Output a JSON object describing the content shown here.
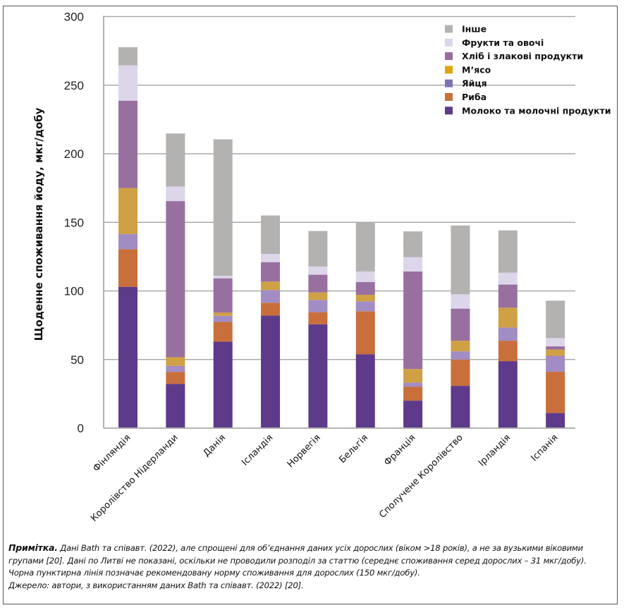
{
  "chart_data": {
    "type": "bar",
    "stacked": true,
    "title": "",
    "xlabel": "",
    "ylabel": "Щоденне споживання йоду, мкг/добу",
    "ylim": [
      0,
      300
    ],
    "yticks": [
      0,
      50,
      100,
      150,
      200,
      250,
      300
    ],
    "grid": true,
    "legend_position": "top-right",
    "categories": [
      "Фінляндія",
      "Королівство Нідерланди",
      "Данія",
      "Ісландія",
      "Норвегія",
      "Бельгія",
      "Франція",
      "Сполучене Королівство",
      "Ірландія",
      "Іспанія"
    ],
    "series": [
      {
        "name": "Молоко та молочні продукти",
        "color": "#5e3a8a",
        "values": [
          103,
          32.2,
          63,
          82.1,
          75.7,
          53.9,
          20,
          30.8,
          48.8,
          11
        ]
      },
      {
        "name": "Риба",
        "color": "#c96f3c",
        "values": [
          27.4,
          8.8,
          14.4,
          9.3,
          8.8,
          31.3,
          10.1,
          19.2,
          14.9,
          30.1
        ]
      },
      {
        "name": "Яйця",
        "color": "#a18cc4",
        "values": [
          11.1,
          4.4,
          4.4,
          9.2,
          8.9,
          7.2,
          3.1,
          6,
          9.6,
          11.6
        ]
      },
      {
        "name": "М’ясо",
        "color": "#d0a045",
        "values": [
          33.5,
          6.3,
          2.4,
          6.2,
          5.5,
          4.8,
          9.9,
          7.7,
          14.5,
          4.6
        ]
      },
      {
        "name": "Хліб і злакові продукти",
        "color": "#98709f",
        "values": [
          63.7,
          113.8,
          25,
          14.2,
          12.9,
          9.3,
          71.1,
          23.4,
          16.9,
          2.3
        ]
      },
      {
        "name": "Фрукти та овочі",
        "color": "#ddd6ea",
        "values": [
          25.7,
          10.6,
          1.8,
          6,
          6,
          7.7,
          10.4,
          10.4,
          8.6,
          6
        ]
      },
      {
        "name": "Інше",
        "color": "#b3b2b1",
        "values": [
          13.3,
          38.7,
          99.5,
          28,
          25.9,
          35.5,
          18.8,
          50.2,
          30.8,
          27.3
        ]
      }
    ],
    "legend_order": [
      "Інше",
      "Фрукти та овочі",
      "Хліб і злакові продукти",
      "М’ясо",
      "Яйця",
      "Риба",
      "Молоко та молочні продукти"
    ],
    "legend_colors": [
      "#b3b2b1",
      "#ddd6ea",
      "#9b6aa3",
      "#e0a510",
      "#7d73b3",
      "#c96f3c",
      "#5e3a8a"
    ]
  },
  "note": {
    "label": "Примітка.",
    "text": " Дані Bath та співавт. (2022), але спрощені для об’єднання даних усіх дорослих (віком >18 років), а не за вузькими віковими групами [20]. Дані по Литві не показані, оскільки не проводили розподіл за статтю (середнє споживання серед дорослих – 31 мкг/добу). Чорна пунктирна лінія позначає рекомендовану норму споживання для дорослих (150 мкг/добу).",
    "source": "Джерело: автори, з використанням даних Bath та співавт. (2022) [20]."
  }
}
